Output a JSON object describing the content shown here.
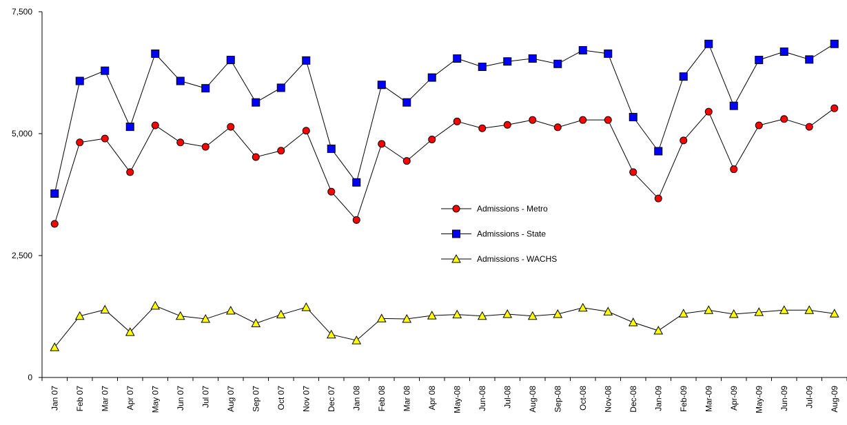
{
  "chart_data": {
    "type": "line",
    "categories": [
      "Jan 07",
      "Feb 07",
      "Mar 07",
      "Apr 07",
      "May 07",
      "Jun 07",
      "Jul 07",
      "Aug 07",
      "Sep 07",
      "Oct 07",
      "Nov 07",
      "Dec 07",
      "Jan 08",
      "Feb 08",
      "Mar 08",
      "Apr 08",
      "May-08",
      "Jun-08",
      "Jul-08",
      "Aug-08",
      "Sep-08",
      "Oct-08",
      "Nov-08",
      "Dec-08",
      "Jan-09",
      "Feb-09",
      "Mar-09",
      "Apr-09",
      "May-09",
      "Jun-09",
      "Jul-09",
      "Aug-09"
    ],
    "series": [
      {
        "name": "Admissions - Metro",
        "color": "#ff0000",
        "marker": "circle",
        "values": [
          3150,
          4820,
          4900,
          4210,
          5170,
          4820,
          4730,
          5140,
          4520,
          4650,
          5060,
          3810,
          3230,
          4790,
          4440,
          4880,
          5250,
          5110,
          5180,
          5280,
          5130,
          5280,
          5280,
          4210,
          3670,
          4860,
          5450,
          4270,
          5170,
          5300,
          5140,
          5520
        ]
      },
      {
        "name": "Admissions - State",
        "color": "#0000ff",
        "marker": "square",
        "values": [
          3770,
          6080,
          6290,
          5140,
          6640,
          6080,
          5930,
          6510,
          5640,
          5940,
          6500,
          4690,
          4000,
          6000,
          5640,
          6150,
          6540,
          6370,
          6480,
          6540,
          6430,
          6710,
          6640,
          5340,
          4640,
          6170,
          6840,
          5570,
          6510,
          6680,
          6520,
          6840
        ]
      },
      {
        "name": "Admissions - WACHS",
        "color": "#ffff00",
        "marker": "triangle",
        "values": [
          620,
          1260,
          1390,
          930,
          1470,
          1260,
          1200,
          1370,
          1110,
          1290,
          1440,
          880,
          760,
          1210,
          1200,
          1270,
          1290,
          1260,
          1300,
          1260,
          1300,
          1430,
          1350,
          1130,
          960,
          1310,
          1380,
          1300,
          1340,
          1380,
          1380,
          1310
        ]
      }
    ],
    "ylim": [
      0,
      7500
    ],
    "yticks": [
      0,
      {
        "value": 2500,
        "label": "2,500"
      },
      {
        "value": 5000,
        "label": "5,000"
      },
      {
        "value": 7500,
        "label": "7,500"
      }
    ]
  }
}
